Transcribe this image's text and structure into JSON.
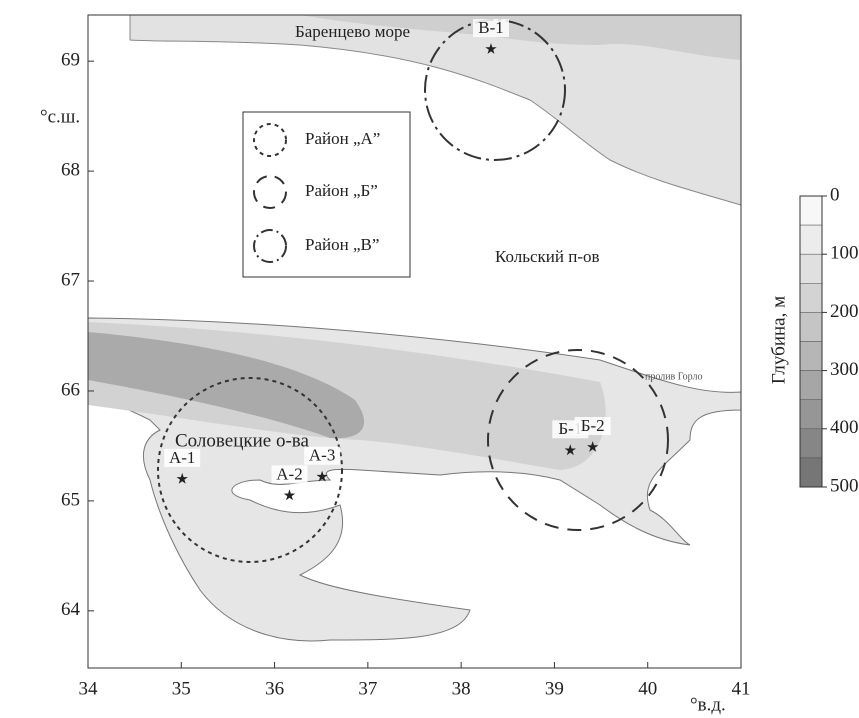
{
  "map": {
    "x_label": "°в.д.",
    "y_label": "°с.ш.",
    "xlim": [
      34,
      41
    ],
    "ylim": [
      63.48,
      69.42
    ],
    "xticks": [
      34,
      35,
      36,
      37,
      38,
      39,
      40,
      41
    ],
    "yticks": [
      64,
      65,
      66,
      67,
      68,
      69
    ],
    "place_labels": [
      "Баренцево море",
      "Кольский п-ов",
      "Соловецкие о-ва",
      "пролив Горло"
    ],
    "legend": [
      "Район „А”",
      "Район „Б”",
      "Район „В”"
    ],
    "stations": [
      {
        "name": "В-1",
        "lon": 38.32,
        "lat": 69.11
      },
      {
        "name": "А-1",
        "lon": 35.01,
        "lat": 65.2
      },
      {
        "name": "А-2",
        "lon": 36.16,
        "lat": 65.05
      },
      {
        "name": "А-3",
        "lon": 36.51,
        "lat": 65.22
      },
      {
        "name": "Б-1",
        "lon": 39.17,
        "lat": 65.46
      },
      {
        "name": "Б-2",
        "lon": 39.41,
        "lat": 65.49
      }
    ],
    "colorbar": {
      "label": "Глубина, м",
      "lim": [
        0,
        500
      ],
      "ticks": [
        0,
        100,
        200,
        300,
        400,
        500
      ]
    }
  }
}
